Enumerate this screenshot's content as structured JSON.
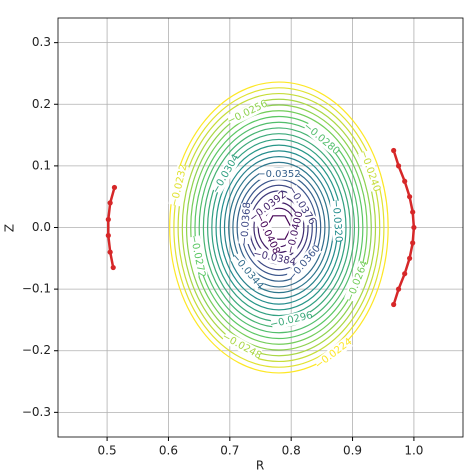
{
  "chart_data": {
    "type": "contour",
    "colormap": "viridis",
    "grid": true,
    "xlabel": "R",
    "ylabel": "Z",
    "xlim": [
      0.42,
      1.08
    ],
    "ylim": [
      -0.34,
      0.34
    ],
    "xticks": [
      0.5,
      0.6,
      0.7,
      0.8,
      0.9,
      {
        "value": 1,
        "label": "1.0"
      }
    ],
    "yticks": [
      {
        "value": -0.3,
        "label": "−0.3"
      },
      {
        "value": -0.2,
        "label": "−0.2"
      },
      {
        "value": -0.1,
        "label": "−0.1"
      },
      {
        "value": 0,
        "label": "0.0"
      },
      0.1,
      0.2,
      0.3
    ],
    "levels": [
      -0.0408,
      -0.04,
      -0.0392,
      -0.0384,
      -0.0376,
      -0.0368,
      -0.036,
      -0.0352,
      -0.0344,
      -0.0336,
      -0.0328,
      -0.032,
      -0.0312,
      -0.0304,
      -0.0296,
      -0.0288,
      -0.028,
      -0.0272,
      -0.0264,
      -0.0256,
      -0.0248,
      -0.024,
      -0.0232,
      -0.0224
    ],
    "contour_labels": [
      {
        "value": -0.0224,
        "label": "−0.0224"
      },
      {
        "value": -0.0232,
        "label": "−0.0232"
      },
      {
        "value": -0.024,
        "label": "−0.0240"
      },
      {
        "value": -0.0248,
        "label": "−0.0248"
      },
      {
        "value": -0.0256,
        "label": "−0.0256"
      },
      {
        "value": -0.0264,
        "label": "−0.0264"
      },
      {
        "value": -0.0272,
        "label": "−0.0272"
      },
      {
        "value": -0.028,
        "label": "−0.0280"
      },
      {
        "value": -0.0296,
        "label": "−0.0296"
      },
      {
        "value": -0.0304,
        "label": "−0.0304"
      },
      {
        "value": -0.032,
        "label": "−0.0320"
      },
      {
        "value": -0.0344,
        "label": "−0.0344"
      },
      {
        "value": -0.0352,
        "label": "−0.0352"
      },
      {
        "value": -0.036,
        "label": "−0.0360"
      },
      {
        "value": -0.0368,
        "label": "−0.0368"
      },
      {
        "value": -0.0376,
        "label": "−0.0376"
      },
      {
        "value": -0.0384,
        "label": "−0.0384"
      },
      {
        "value": -0.0392,
        "label": "−0.0392"
      },
      {
        "value": -0.04,
        "label": "−0.0400"
      },
      {
        "value": -0.0408,
        "label": "−0.0408"
      }
    ],
    "series": [
      {
        "color": "#d62728",
        "x": [
          0.512,
          0.505,
          0.502,
          0.502,
          0.505,
          0.51
        ],
        "y": [
          0.065,
          0.04,
          0.013,
          -0.013,
          -0.04,
          -0.065
        ]
      },
      {
        "color": "#d62728",
        "x": [
          0.967,
          0.975,
          0.985,
          0.993,
          0.998,
          1.0,
          0.998,
          0.993,
          0.985,
          0.975,
          0.967
        ],
        "y": [
          0.125,
          0.1,
          0.075,
          0.05,
          0.025,
          0.0,
          -0.025,
          -0.05,
          -0.075,
          -0.1,
          -0.125
        ]
      }
    ]
  }
}
